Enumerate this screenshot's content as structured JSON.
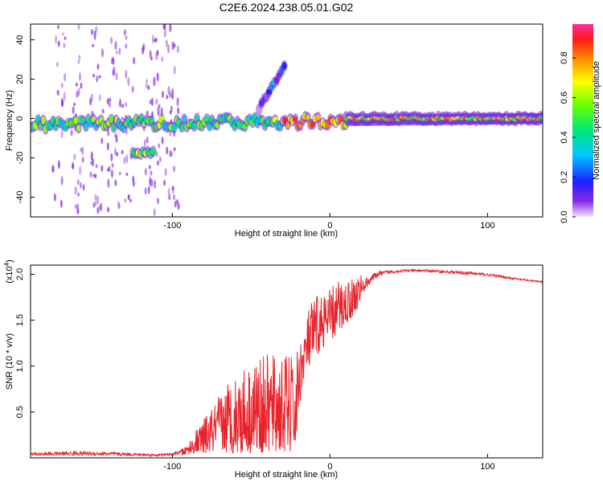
{
  "figure_title": "C2E6.2024.238.05.01.G02",
  "colors": {
    "snr_line": "#e8232b",
    "spectrogram_bg": "#ffffff",
    "axis": "#000000"
  },
  "chart_data": [
    {
      "type": "heatmap",
      "title": "C2E6.2024.238.05.01.G02",
      "xlabel": "Height of straight line (km)",
      "ylabel": "Frequency (Hz)",
      "xlim": [
        -190,
        135
      ],
      "ylim": [
        -50,
        48
      ],
      "xticks": [
        -100,
        0,
        100
      ],
      "xtick_labels": [
        "-100",
        "0",
        "100"
      ],
      "yticks": [
        -40,
        -20,
        0,
        20,
        40
      ],
      "ytick_labels": [
        "-40",
        "-20",
        "0",
        "20",
        "40"
      ],
      "grid": false,
      "colormap": "rainbow (violet-blue-cyan-green-yellow-orange-red-magenta)",
      "colorbar": {
        "label": "Normalized spectral amplitude",
        "range": [
          0,
          0.97
        ],
        "ticks": [
          0.0,
          0.2,
          0.4,
          0.6,
          0.8
        ],
        "tick_labels": [
          "0.0",
          "0.2",
          "0.4",
          "0.6",
          "0.8"
        ]
      },
      "features": [
        {
          "name": "main carrier trace",
          "x_range": [
            -190,
            135
          ],
          "frequency_hz": [
            -3,
            0
          ],
          "amplitude": 0.5
        },
        {
          "name": "offset trace",
          "x_range": [
            -125,
            -112
          ],
          "frequency_hz": [
            -18,
            -17
          ],
          "amplitude": 0.55
        },
        {
          "name": "rising branch",
          "x_range": [
            -45,
            -28
          ],
          "frequency_hz": [
            5,
            28
          ],
          "amplitude": 0.2
        },
        {
          "name": "steady carrier",
          "x_range": [
            10,
            135
          ],
          "frequency_hz": [
            0,
            0
          ],
          "amplitude": 0.9
        }
      ]
    },
    {
      "type": "line",
      "xlabel": "Height of straight line (km)",
      "ylabel": "SNR (10 * v/v)",
      "y_multiplier_label": "(x10",
      "y_multiplier_exponent": "4",
      "y_multiplier_close": ")",
      "xlim": [
        -190,
        135
      ],
      "ylim": [
        0,
        2.1
      ],
      "xticks": [
        -100,
        0,
        100
      ],
      "xtick_labels": [
        "-100",
        "0",
        "100"
      ],
      "yticks": [
        0.5,
        1.0,
        1.5,
        2.0
      ],
      "ytick_labels": [
        "0.5",
        "1.0",
        "1.5",
        "2.0"
      ],
      "grid": false,
      "series": [
        {
          "color": "#e8232b",
          "envelope_x": [
            -190,
            -160,
            -130,
            -110,
            -100,
            -92,
            -85,
            -75,
            -65,
            -55,
            -45,
            -35,
            -22,
            -18,
            -15,
            -12,
            -8,
            -5,
            0,
            5,
            10,
            15,
            20,
            25,
            30,
            40,
            50,
            60,
            75,
            90,
            100,
            110,
            120,
            135
          ],
          "envelope_min": [
            0.01,
            0.01,
            0.01,
            0.01,
            0.02,
            0.03,
            0.05,
            0.05,
            0.05,
            0.05,
            0.05,
            0.05,
            0.05,
            0.75,
            0.9,
            1.0,
            1.1,
            1.2,
            1.25,
            1.35,
            1.45,
            1.55,
            1.7,
            1.85,
            1.95,
            2.0,
            2.02,
            2.02,
            2.0,
            1.98,
            1.97,
            1.95,
            1.93,
            1.9
          ],
          "envelope_max": [
            0.07,
            0.09,
            0.07,
            0.05,
            0.06,
            0.12,
            0.3,
            0.55,
            0.85,
            1.0,
            1.1,
            1.15,
            1.12,
            1.35,
            1.55,
            1.7,
            1.8,
            1.8,
            1.85,
            1.95,
            1.95,
            1.98,
            2.0,
            2.02,
            2.05,
            2.06,
            2.06,
            2.06,
            2.05,
            2.04,
            2.02,
            1.99,
            1.96,
            1.93
          ]
        }
      ]
    }
  ]
}
